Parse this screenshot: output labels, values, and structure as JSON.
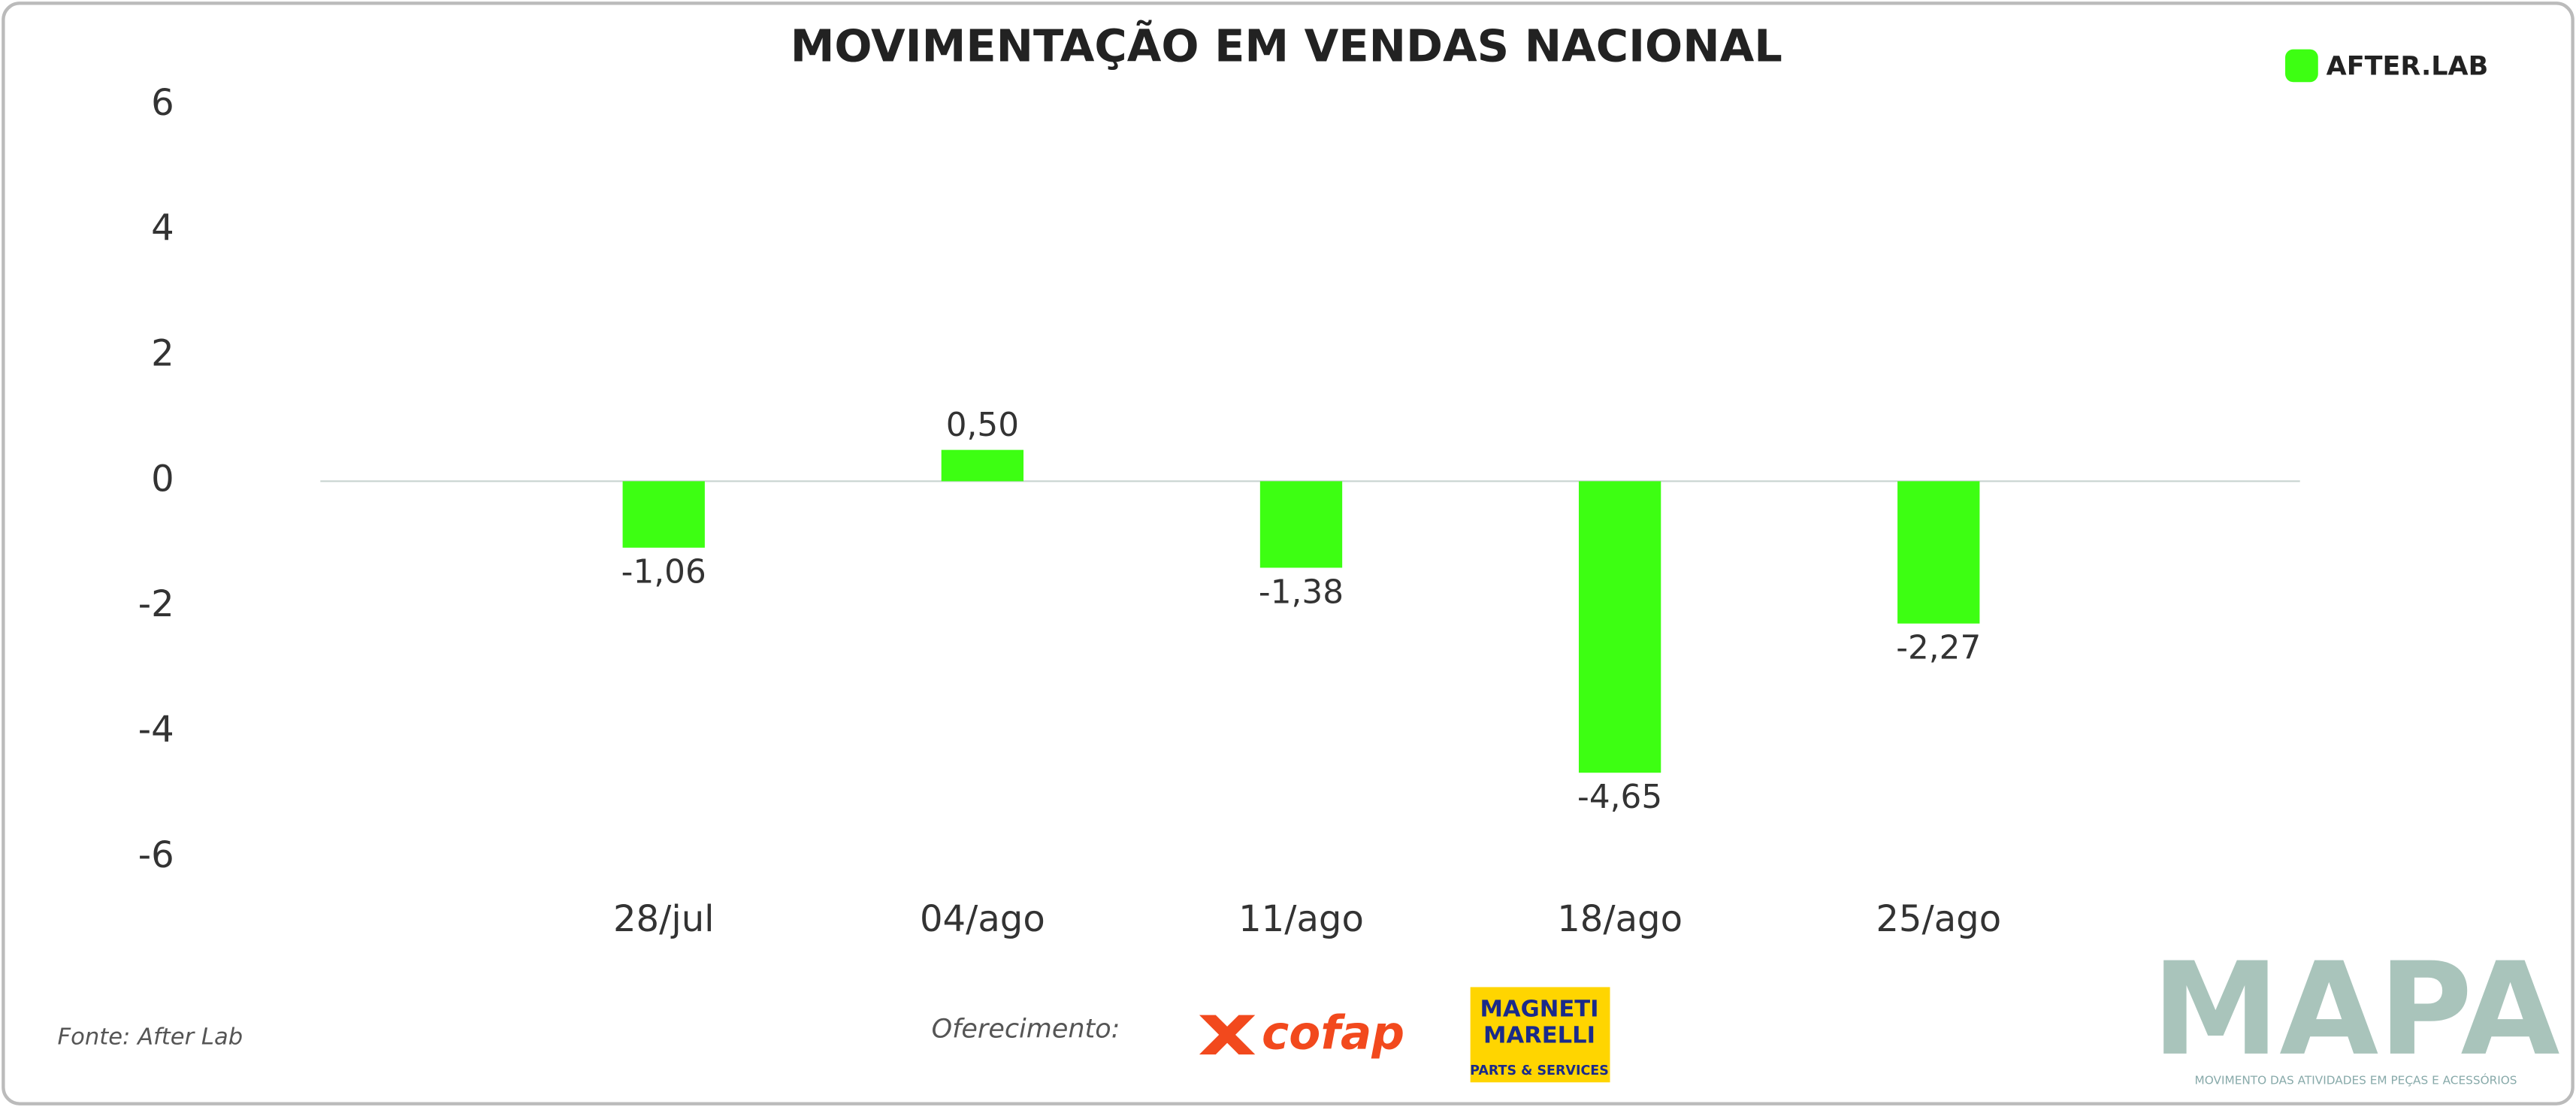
{
  "chart_data": {
    "type": "bar",
    "title": "MOVIMENTAÇÃO EM VENDAS NACIONAL",
    "categories": [
      "28/jul",
      "04/ago",
      "11/ago",
      "18/ago",
      "25/ago"
    ],
    "values": [
      -1.06,
      0.5,
      -1.38,
      -4.65,
      -2.27
    ],
    "value_labels": [
      "-1,06",
      "0,50",
      "-1,38",
      "-4,65",
      "-2,27"
    ],
    "color": "#3dff12",
    "ylim": [
      -6,
      6
    ],
    "yticks": [
      6,
      4,
      2,
      0,
      -2,
      -4,
      -6
    ],
    "grid": false
  },
  "branding": {
    "logo": "AFTER.LAB"
  },
  "footer": {
    "source": "Fonte: After Lab",
    "sponsor_label": "Oferecimento:",
    "cofap": "cofap",
    "marelli_1": "MAGNETI",
    "marelli_2": "MARELLI",
    "marelli_3": "PARTS & SERVICES",
    "mapa": "MAPA",
    "mapa_tagline": "MOVIMENTO DAS ATIVIDADES EM PEÇAS E ACESSÓRIOS"
  }
}
